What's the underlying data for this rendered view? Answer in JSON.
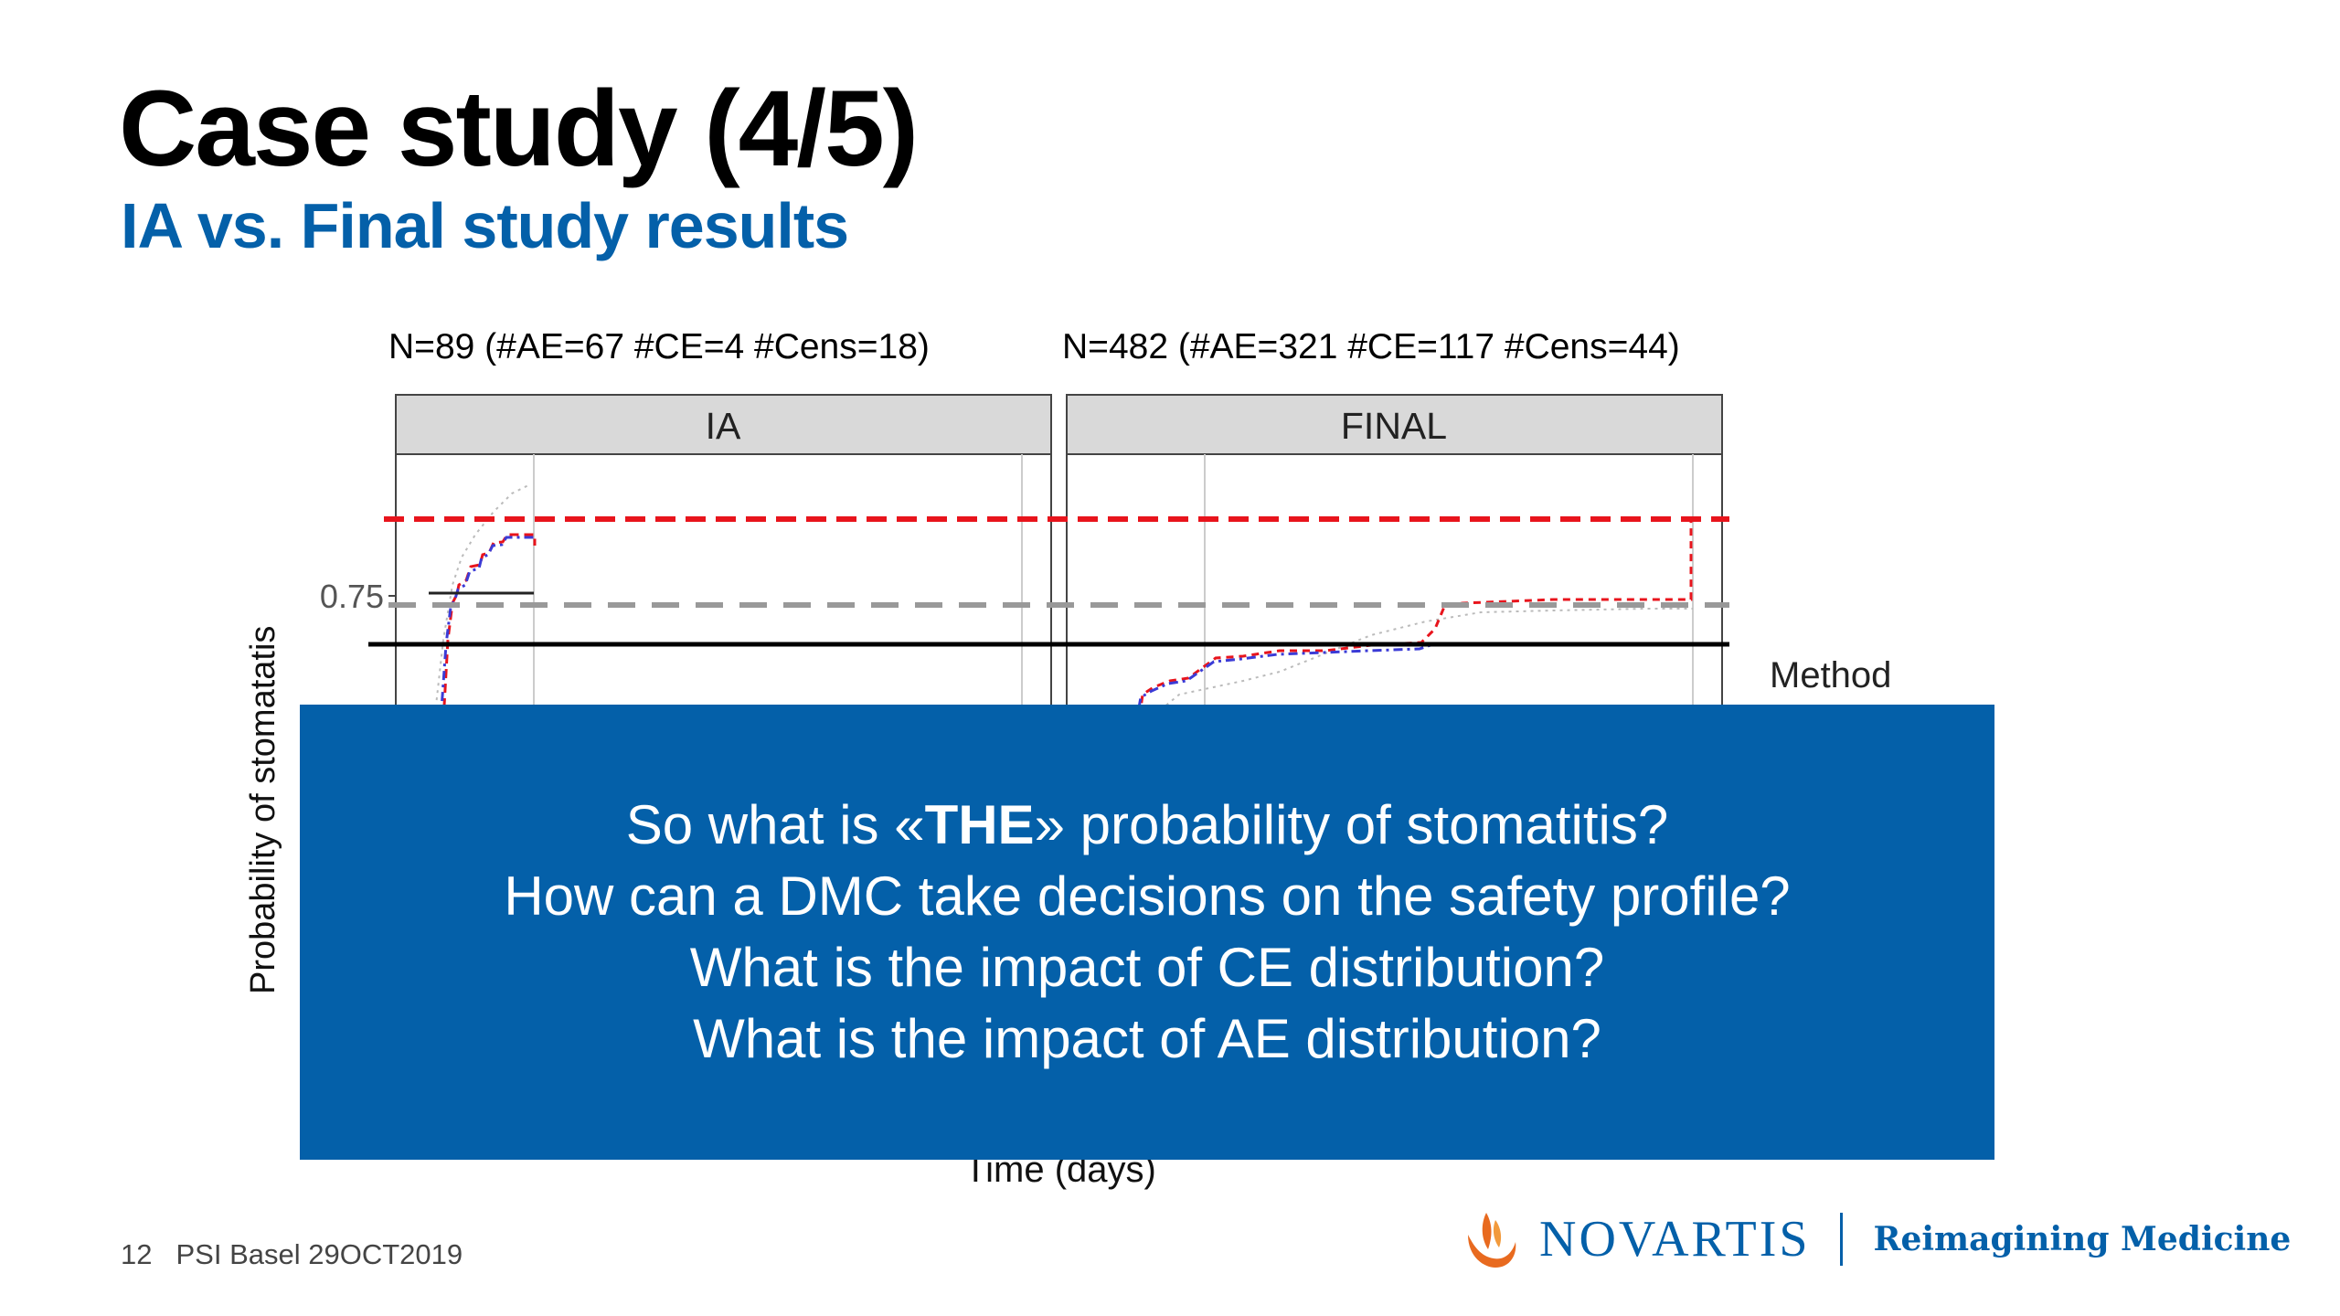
{
  "slide": {
    "title": "Case study (4/5)",
    "subtitle": "IA vs. Final study results"
  },
  "chart_data": {
    "type": "line",
    "panels": [
      {
        "strip": "IA",
        "header": "N=89  (#AE=67 #CE=4  #Cens=18)"
      },
      {
        "strip": "FINAL",
        "header": "N=482  (#AE=321 #CE=117  #Cens=44)"
      }
    ],
    "ylabel": "Probability of stomatatis",
    "xlabel": "Time (days)",
    "ytick_labels": [
      "0.75"
    ],
    "legend_title": "Method",
    "reference_lines": [
      {
        "style": "dashed",
        "color": "#e8141c"
      },
      {
        "style": "dashed",
        "color": "#999999",
        "y": 0.75
      },
      {
        "style": "solid",
        "color": "#000000"
      }
    ],
    "series_colors": [
      "#e8141c",
      "#3b3bd6",
      "#bbbbbb",
      "#000000"
    ]
  },
  "overlay": {
    "line1_before": "So what is «",
    "line1_bold": "THE",
    "line1_after": "» probability of stomatitis?",
    "line2": "How can a DMC take decisions on the safety profile?",
    "line3": "What is the impact of CE distribution?",
    "line4": "What is the impact of AE distribution?"
  },
  "footer": {
    "page_number": "12",
    "event": "PSI Basel 29OCT2019"
  },
  "logo": {
    "name": "NOVARTIS",
    "tagline": "Reimagining Medicine",
    "brand_color": "#0460a9",
    "mark_color": "#e86a1f",
    "icon": "novartis-flame-icon"
  }
}
